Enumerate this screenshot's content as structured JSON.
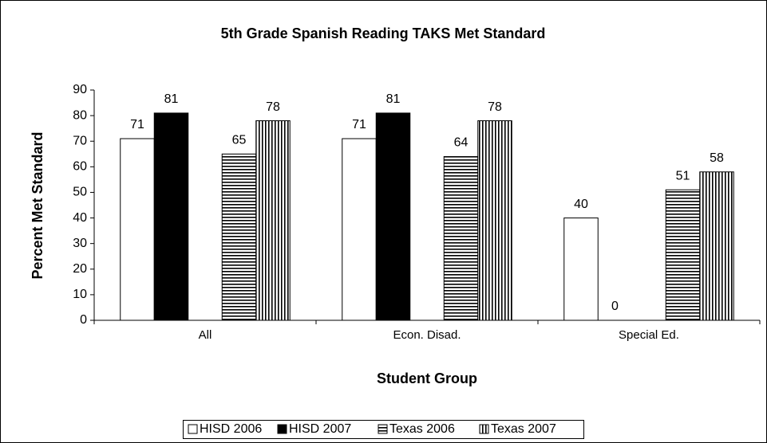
{
  "chart_data": {
    "type": "bar",
    "title": "5th Grade Spanish Reading TAKS Met Standard",
    "x_label": "Student Group",
    "y_label": "Percent Met Standard",
    "categories": [
      "All",
      "Econ. Disad.",
      "Special Ed."
    ],
    "series": [
      {
        "name": "HISD 2006",
        "color": "#ffffff",
        "pattern": "solid",
        "values": [
          71,
          71,
          40
        ]
      },
      {
        "name": "HISD 2007",
        "color": "#000000",
        "pattern": "solid",
        "values": [
          81,
          81,
          0
        ]
      },
      {
        "name": "Texas 2006",
        "color": "#000000",
        "pattern": "horizontal",
        "values": [
          65,
          64,
          51
        ]
      },
      {
        "name": "Texas 2007",
        "color": "#000000",
        "pattern": "vertical",
        "values": [
          78,
          78,
          58
        ]
      }
    ],
    "ylim": [
      0,
      90
    ],
    "yticks": [
      0,
      10,
      20,
      30,
      40,
      50,
      60,
      70,
      80,
      90
    ],
    "legend": "bottom"
  }
}
